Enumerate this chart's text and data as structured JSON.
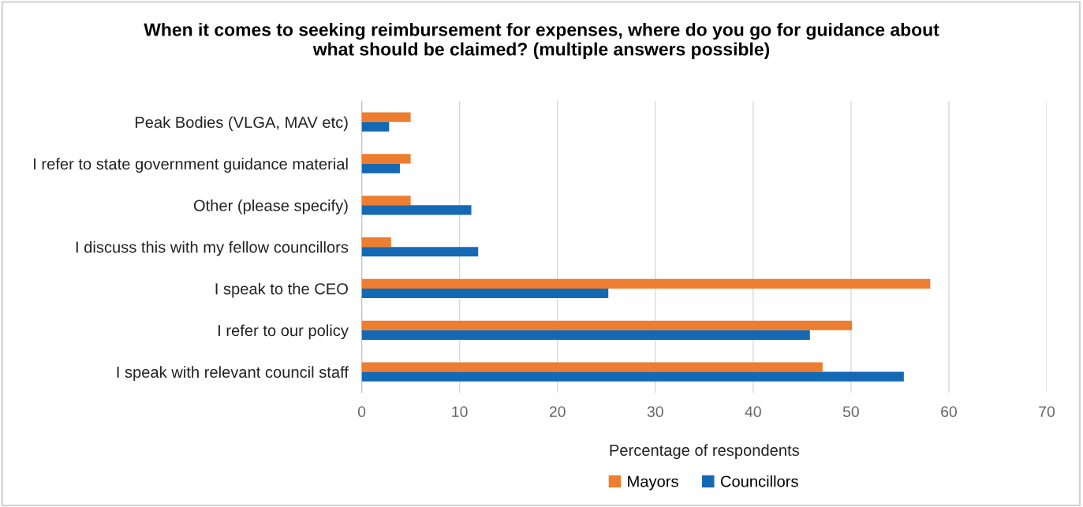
{
  "chart_data": {
    "type": "bar",
    "orientation": "horizontal",
    "title": "When it comes to seeking reimbursement for expenses, where do you go for guidance about\nwhat should be claimed? (multiple answers possible)",
    "xlabel": "Percentage of respondents",
    "categories": [
      "Peak Bodies (VLGA, MAV etc)",
      "I refer to state government guidance material",
      "Other (please specify)",
      "I discuss this with my fellow councillors",
      "I speak to the CEO",
      "I refer to our policy",
      "I speak with relevant council staff"
    ],
    "series": [
      {
        "name": "Mayors",
        "color": "#ed7d31",
        "values": [
          5,
          5,
          5,
          3,
          58.1,
          50.1,
          47.1
        ]
      },
      {
        "name": "Councillors",
        "color": "#1469b5",
        "values": [
          2.8,
          3.9,
          11.2,
          11.9,
          25.2,
          45.8,
          55.4
        ]
      }
    ],
    "xlim": [
      0,
      70
    ],
    "xticks": [
      0,
      10,
      20,
      30,
      40,
      50,
      60,
      70
    ],
    "grid": "x",
    "legend": "bottom"
  }
}
